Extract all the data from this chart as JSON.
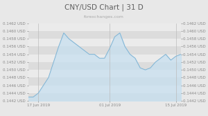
{
  "title": "CNY/USD Chart | 31 D",
  "subtitle": "forexchanges.com",
  "bg_color": "#e8e8e8",
  "plot_bg_color": "#ffffff",
  "line_color": "#7fb3d3",
  "line_fill_color": "#c5dff0",
  "ylim": [
    0.1442,
    0.1462
  ],
  "yticks": [
    0.1442,
    0.1444,
    0.1446,
    0.1448,
    0.145,
    0.1452,
    0.1454,
    0.1456,
    0.1458,
    0.146,
    0.1462
  ],
  "xtick_labels": [
    "17 Jun 2019",
    "01 Jul 2019",
    "15 Jul 2019"
  ],
  "xtick_positions": [
    2,
    16,
    29
  ],
  "y_values": [
    0.1443,
    0.1443,
    0.1444,
    0.1446,
    0.1448,
    0.1452,
    0.1456,
    0.14595,
    0.1458,
    0.1457,
    0.1456,
    0.1455,
    0.1454,
    0.1454,
    0.1453,
    0.1453,
    0.14555,
    0.14585,
    0.14595,
    0.1456,
    0.1454,
    0.1453,
    0.14505,
    0.145,
    0.14505,
    0.1452,
    0.1453,
    0.1454,
    0.14525,
    0.14535,
    0.1454
  ],
  "title_fontsize": 7.5,
  "subtitle_fontsize": 4.5,
  "tick_fontsize": 4.0,
  "stripe_colors": [
    "#dcdcdc",
    "#ebebeb"
  ],
  "title_color": "#606060",
  "tick_color": "#888888",
  "vline_color": "#bbbbbb"
}
